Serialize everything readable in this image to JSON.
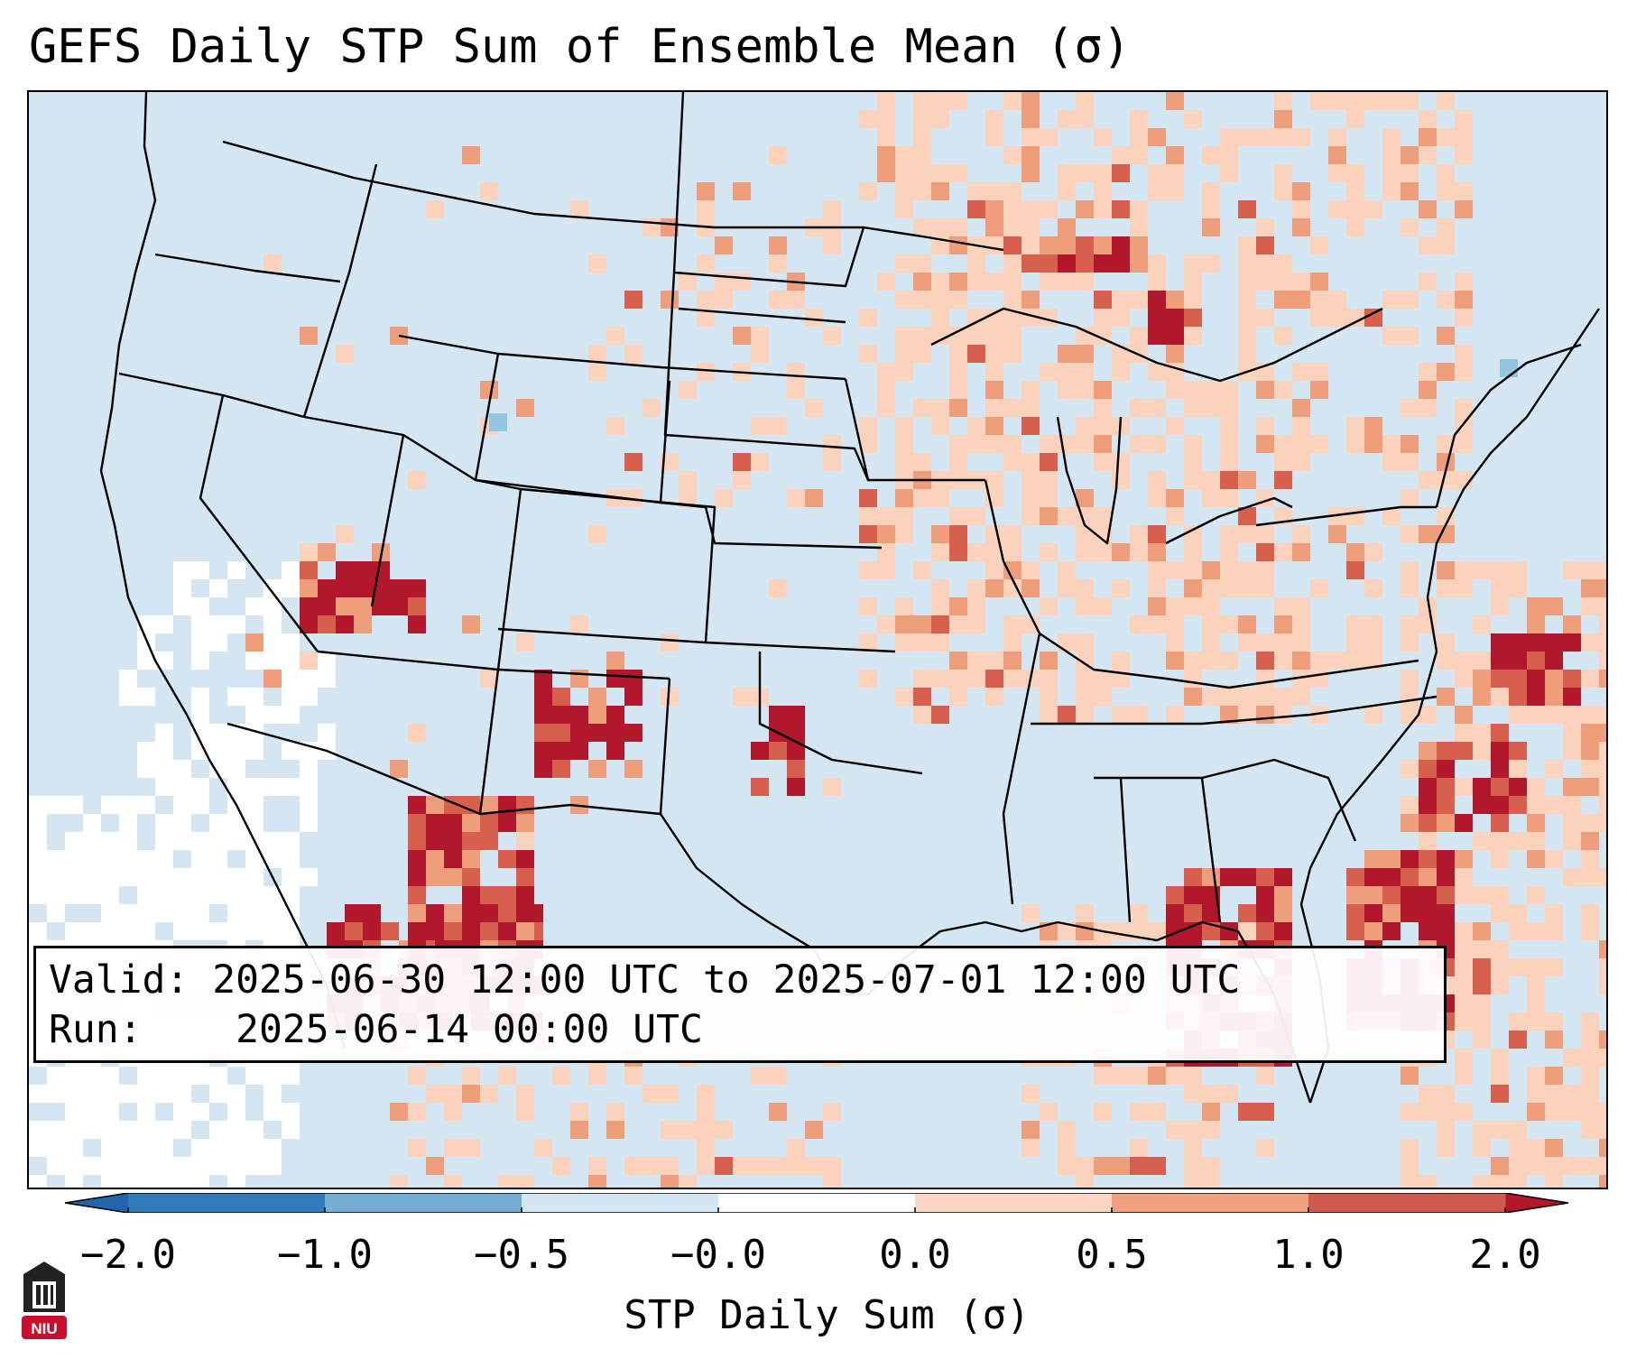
{
  "title": "GEFS Daily STP Sum of Ensemble Mean (σ)",
  "info": {
    "valid_label": "Valid:",
    "valid_value": "2025-06-30 12:00 UTC to 2025-07-01 12:00 UTC",
    "run_label": "Run:",
    "run_value": "2025-06-14 00:00 UTC"
  },
  "colorbar": {
    "label": "STP Daily Sum (σ)",
    "ticks": [
      "−2.0",
      "−1.0",
      "−0.5",
      "−0.0",
      "0.0",
      "0.5",
      "1.0",
      "2.0"
    ],
    "colors": [
      "#2f7bbd",
      "#74aed4",
      "#d4e6f1",
      "#ffffff",
      "#fbd6c4",
      "#f0a07f",
      "#d05a4d",
      "#b2182b"
    ],
    "extend_low_color": "#2166ac",
    "extend_high_color": "#b2182b"
  },
  "map": {
    "ocean_land_color": "#d4e6f1",
    "light_orange": "#fbd2bc",
    "medium_orange": "#ef9e7c",
    "dark_red": "#b2182b",
    "red": "#d6604d",
    "white_zone": "#ffffff"
  },
  "logo": {
    "text": "NIU"
  }
}
